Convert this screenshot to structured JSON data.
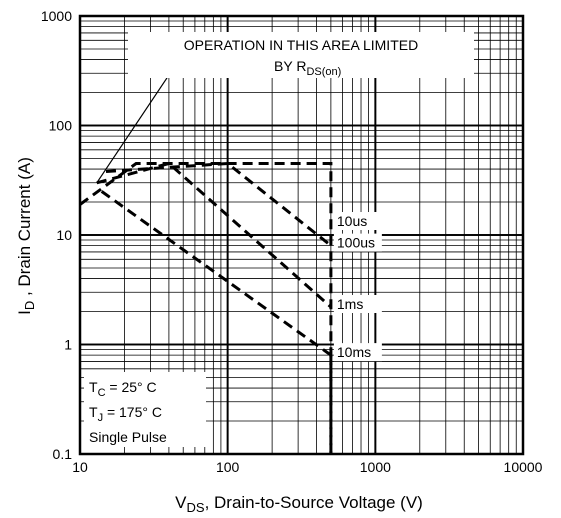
{
  "chart_data": {
    "type": "line",
    "x_scale": "log",
    "y_scale": "log",
    "xlim": [
      10,
      10000
    ],
    "ylim": [
      0.1,
      1000
    ],
    "x_ticks": [
      "10",
      "100",
      "1000",
      "10000"
    ],
    "y_ticks": [
      "0.1",
      "1",
      "10",
      "100",
      "1000"
    ],
    "xlabel": {
      "main": "V",
      "sub": "DS",
      "rest": ", Drain-to-Source Voltage (V)"
    },
    "ylabel": {
      "main": "I",
      "sub": "D",
      "rest": " , Drain Current (A)"
    },
    "grid": true,
    "annotation": {
      "line1": "OPERATION IN THIS AREA LIMITED",
      "line2_main": "BY R",
      "line2_sub": "DS(on)"
    },
    "conditions": {
      "tc_main": "T",
      "tc_sub": "C",
      "tc_rest": " = 25° C",
      "tj_main": "T",
      "tj_sub": "J",
      "tj_rest": " = 175° C",
      "pulse": "Single Pulse"
    },
    "rdson_line": [
      [
        13,
        30
      ],
      [
        44,
        350
      ]
    ],
    "series": [
      {
        "name": "10us",
        "points": [
          [
            10,
            19
          ],
          [
            24,
            45
          ],
          [
            500,
            45
          ],
          [
            500,
            0.1
          ]
        ]
      },
      {
        "name": "100us",
        "points": [
          [
            15,
            38
          ],
          [
            100,
            45
          ],
          [
            500,
            8
          ]
        ]
      },
      {
        "name": "1ms",
        "points": [
          [
            13,
            30
          ],
          [
            40,
            45
          ],
          [
            500,
            2.2
          ]
        ]
      },
      {
        "name": "10ms",
        "points": [
          [
            14,
            25
          ],
          [
            500,
            0.8
          ]
        ]
      }
    ],
    "package_limit": [
      [
        10,
        45
      ],
      [
        500,
        45
      ]
    ]
  }
}
